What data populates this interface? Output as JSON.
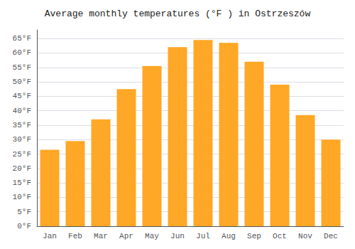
{
  "chart_data": {
    "type": "bar",
    "title": "Average monthly temperatures (°F ) in Ostrzeszów",
    "categories": [
      "Jan",
      "Feb",
      "Mar",
      "Apr",
      "May",
      "Jun",
      "Jul",
      "Aug",
      "Sep",
      "Oct",
      "Nov",
      "Dec"
    ],
    "values": [
      26.5,
      29.5,
      37.0,
      47.5,
      55.5,
      62.0,
      64.5,
      63.5,
      57.0,
      49.0,
      38.5,
      30.0
    ],
    "color": "#FFA726",
    "ylim": [
      0,
      68
    ],
    "yticks": [
      {
        "value": 0,
        "label": "0°F"
      },
      {
        "value": 5,
        "label": "5°F"
      },
      {
        "value": 10,
        "label": "10°F"
      },
      {
        "value": 15,
        "label": "15°F"
      },
      {
        "value": 20,
        "label": "20°F"
      },
      {
        "value": 25,
        "label": "25°F"
      },
      {
        "value": 30,
        "label": "30°F"
      },
      {
        "value": 35,
        "label": "35°F"
      },
      {
        "value": 40,
        "label": "40°F"
      },
      {
        "value": 45,
        "label": "45°F"
      },
      {
        "value": 50,
        "label": "50°F"
      },
      {
        "value": 55,
        "label": "55°F"
      },
      {
        "value": 60,
        "label": "60°F"
      },
      {
        "value": 65,
        "label": "65°F"
      }
    ],
    "grid": true
  }
}
